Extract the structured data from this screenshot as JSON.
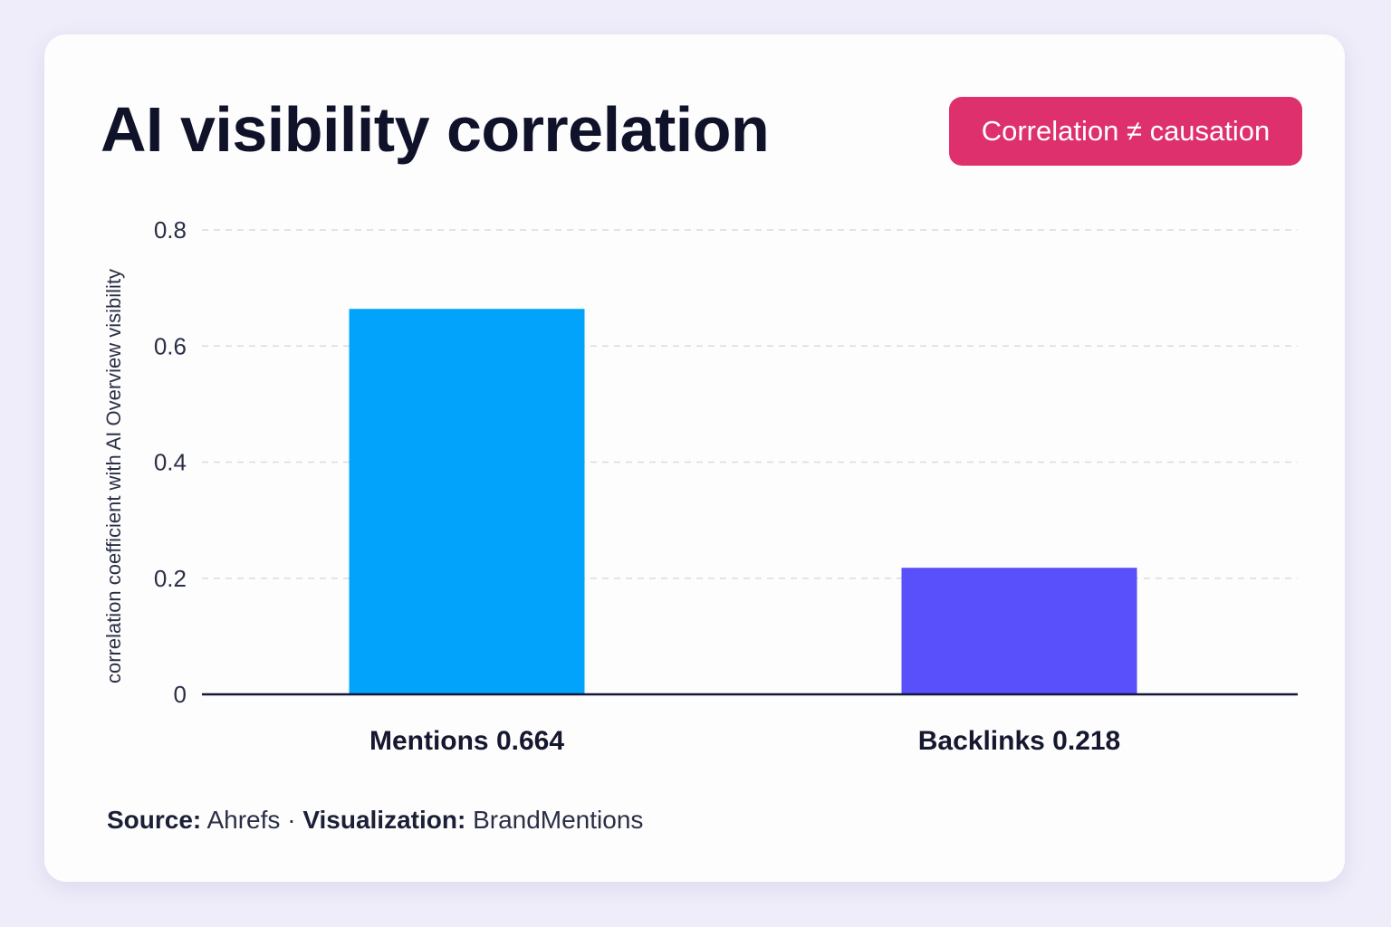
{
  "title": "AI visibility correlation",
  "badge": {
    "label": "Correlation ≠ causation",
    "color": "#de306c"
  },
  "chart_data": {
    "type": "bar",
    "title": "AI visibility correlation",
    "ylabel": "correlation coefficient with AI Overview visibility",
    "xlabel": "",
    "ylim": [
      0,
      0.8
    ],
    "yticks": [
      0,
      0.2,
      0.4,
      0.6,
      0.8
    ],
    "ytick_labels": [
      "0",
      "0.2",
      "0.4",
      "0.6",
      "0.8"
    ],
    "grid": true,
    "categories": [
      "Mentions 0.664",
      "Backlinks 0.218"
    ],
    "values": [
      0.664,
      0.218
    ],
    "colors": [
      "#02a4fb",
      "#594ffb"
    ]
  },
  "source": {
    "source_label": "Source:",
    "source_value": "Ahrefs",
    "separator": "·",
    "viz_label": "Visualization:",
    "viz_value": "BrandMentions"
  }
}
